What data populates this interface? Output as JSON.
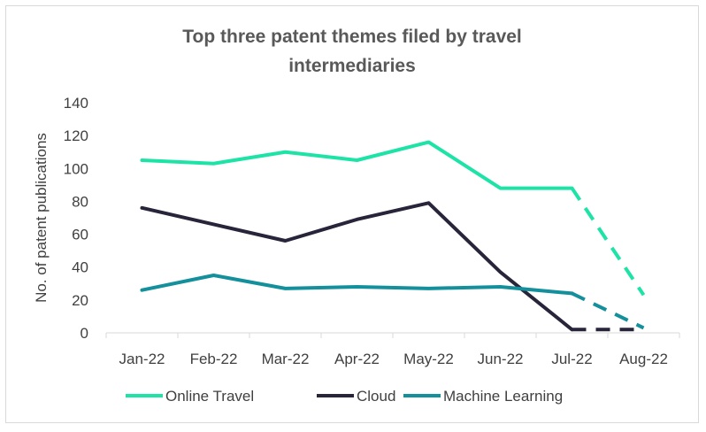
{
  "chart_data": {
    "type": "line",
    "title_lines": [
      "Top three patent themes filed by travel",
      "intermediaries"
    ],
    "xlabel": "",
    "ylabel": "No. of patent publications",
    "categories": [
      "Jan-22",
      "Feb-22",
      "Mar-22",
      "Apr-22",
      "May-22",
      "Jun-22",
      "Jul-22",
      "Aug-22"
    ],
    "ylim": [
      0,
      140
    ],
    "yticks": [
      "0",
      "20",
      "40",
      "60",
      "80",
      "100",
      "120",
      "140"
    ],
    "grid": false,
    "legend_position": "bottom",
    "dashed_from_index": 6,
    "series": [
      {
        "name": "Online Travel",
        "color": "#1ee3a6",
        "values": [
          105,
          103,
          110,
          105,
          116,
          88,
          88,
          23
        ]
      },
      {
        "name": "Cloud",
        "color": "#28243a",
        "values": [
          76,
          66,
          56,
          69,
          79,
          37,
          2,
          2
        ]
      },
      {
        "name": "Machine Learning",
        "color": "#13909b",
        "values": [
          26,
          35,
          27,
          28,
          27,
          28,
          24,
          3
        ]
      }
    ]
  }
}
